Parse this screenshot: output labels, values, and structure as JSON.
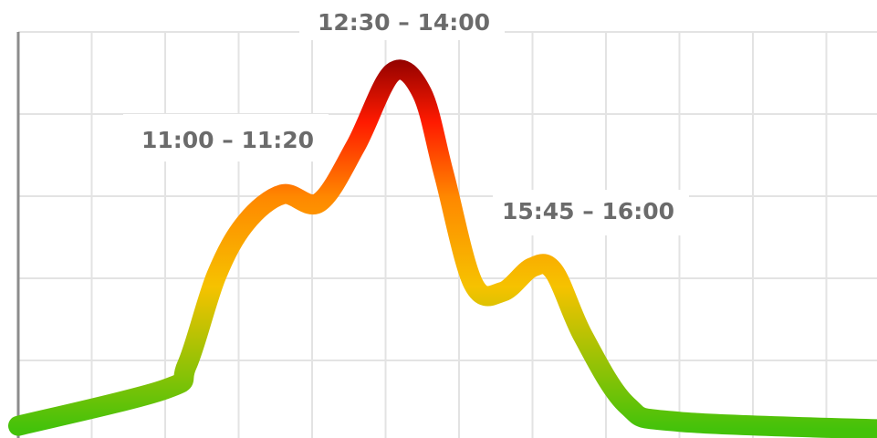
{
  "chart_data": {
    "type": "line",
    "title": "",
    "xlabel": "",
    "ylabel": "",
    "grid": true,
    "line_colors": {
      "low": "#44c20a",
      "mid": "#f6c200",
      "high": "#ff1a00",
      "peak": "#8b0000"
    },
    "series": [
      {
        "points": [
          [
            0,
            0.03
          ],
          [
            2,
            0.12
          ],
          [
            2.3,
            0.18
          ],
          [
            2.7,
            0.4
          ],
          [
            3.1,
            0.53
          ],
          [
            3.6,
            0.6
          ],
          [
            4.1,
            0.58
          ],
          [
            4.6,
            0.72
          ],
          [
            5.1,
            0.9
          ],
          [
            5.5,
            0.85
          ],
          [
            5.8,
            0.65
          ],
          [
            6.2,
            0.38
          ],
          [
            6.6,
            0.36
          ],
          [
            7.0,
            0.42
          ],
          [
            7.3,
            0.41
          ],
          [
            7.7,
            0.25
          ],
          [
            8.3,
            0.08
          ],
          [
            9.0,
            0.04
          ],
          [
            12.0,
            0.02
          ]
        ]
      }
    ],
    "annotations": [
      {
        "text": "11:00 – 11:20"
      },
      {
        "text": "12:30 – 14:00"
      },
      {
        "text": "15:45 – 16:00"
      }
    ]
  }
}
